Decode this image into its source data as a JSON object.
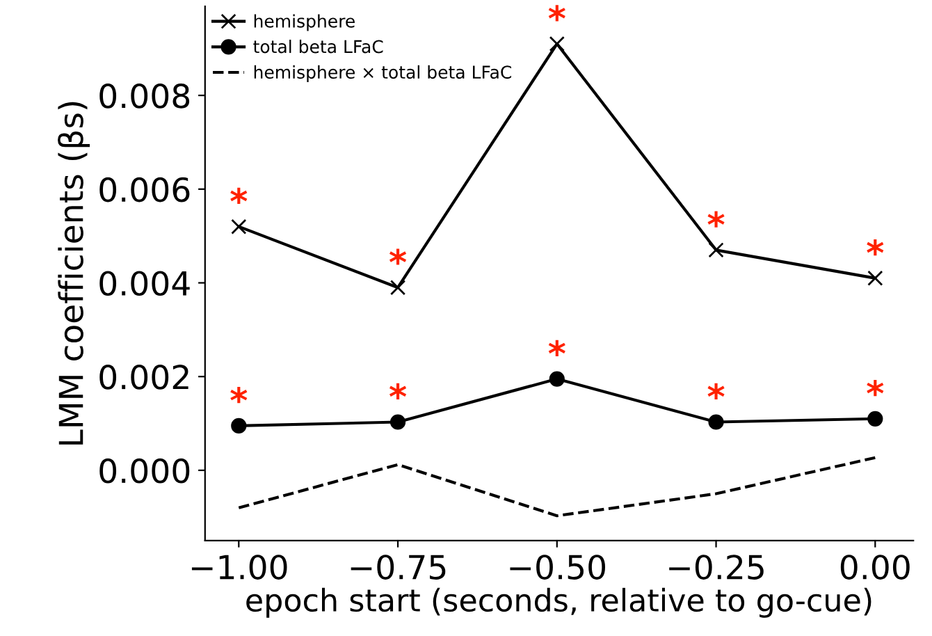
{
  "chart_data": {
    "type": "line",
    "xlabel": "epoch start (seconds, relative to go-cue)",
    "ylabel": "LMM coefficients (βs)",
    "x": [
      -1.0,
      -0.75,
      -0.5,
      -0.25,
      0.0
    ],
    "series": [
      {
        "name": "hemisphere",
        "color": "#000000",
        "marker": "cross",
        "line_style": "solid",
        "values": [
          0.0052,
          0.0039,
          0.0091,
          0.0047,
          0.0041
        ]
      },
      {
        "name": "total beta LFaC",
        "color": "#000000",
        "marker": "circle",
        "line_style": "solid",
        "values": [
          0.00095,
          0.00103,
          0.00195,
          0.00103,
          0.0011
        ]
      },
      {
        "name": "hemisphere × total beta LFaC",
        "color": "#000000",
        "marker": "none",
        "line_style": "dashed",
        "values": [
          -0.0008,
          0.00012,
          -0.00097,
          -0.0005,
          0.00027
        ]
      }
    ],
    "annotations": [
      {
        "text": "*",
        "x": -1.0,
        "y": 0.0052
      },
      {
        "text": "*",
        "x": -0.75,
        "y": 0.0039
      },
      {
        "text": "*",
        "x": -0.5,
        "y": 0.0091
      },
      {
        "text": "*",
        "x": -0.25,
        "y": 0.0047
      },
      {
        "text": "*",
        "x": 0.0,
        "y": 0.0041
      },
      {
        "text": "*",
        "x": -1.0,
        "y": 0.00095
      },
      {
        "text": "*",
        "x": -0.75,
        "y": 0.00103
      },
      {
        "text": "*",
        "x": -0.5,
        "y": 0.00195
      },
      {
        "text": "*",
        "x": -0.25,
        "y": 0.00103
      },
      {
        "text": "*",
        "x": 0.0,
        "y": 0.0011
      }
    ],
    "xlim": [
      -1.053,
      0.06
    ],
    "ylim": [
      -0.0015,
      0.0099
    ],
    "xticks": [
      {
        "value": -1.0,
        "label": "−1.00"
      },
      {
        "value": -0.75,
        "label": "−0.75"
      },
      {
        "value": -0.5,
        "label": "−0.50"
      },
      {
        "value": -0.25,
        "label": "−0.25"
      },
      {
        "value": 0.0,
        "label": "0.00"
      }
    ],
    "yticks": [
      {
        "value": 0.0,
        "label": "0.000"
      },
      {
        "value": 0.002,
        "label": "0.002"
      },
      {
        "value": 0.004,
        "label": "0.004"
      },
      {
        "value": 0.006,
        "label": "0.006"
      },
      {
        "value": 0.008,
        "label": "0.008"
      }
    ],
    "grid": false,
    "legend": "top left"
  }
}
